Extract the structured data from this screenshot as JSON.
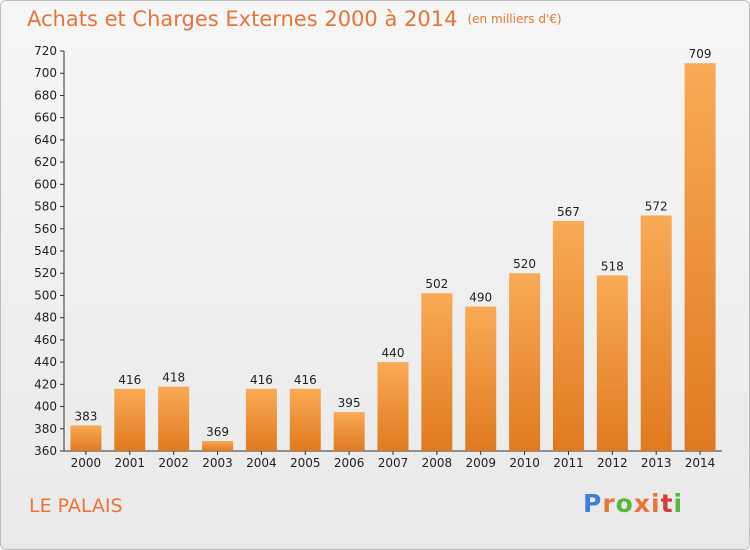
{
  "title": "Achats et Charges Externes 2000 à 2014",
  "subtitle": "(en milliers d'€)",
  "commune": "LE PALAIS",
  "logo_text": "Proxiti",
  "colors": {
    "title": "#e8743a",
    "bar_top": "#f9aa55",
    "bar_bottom": "#e07a20",
    "logo_letters": [
      "#3d7fd6",
      "#e8743a",
      "#56b83f",
      "#e8743a",
      "#e8743a",
      "#d63b3b",
      "#56b83f"
    ]
  },
  "chart_data": {
    "type": "bar",
    "categories": [
      "2000",
      "2001",
      "2002",
      "2003",
      "2004",
      "2005",
      "2006",
      "2007",
      "2008",
      "2009",
      "2010",
      "2011",
      "2012",
      "2013",
      "2014"
    ],
    "values": [
      383,
      416,
      418,
      369,
      416,
      416,
      395,
      440,
      502,
      490,
      520,
      567,
      518,
      572,
      709
    ],
    "ylim": [
      360,
      720
    ],
    "yticks": [
      360,
      380,
      400,
      420,
      440,
      460,
      480,
      500,
      520,
      540,
      560,
      580,
      600,
      620,
      640,
      660,
      680,
      700,
      720
    ],
    "grid": false,
    "legend": "none"
  }
}
